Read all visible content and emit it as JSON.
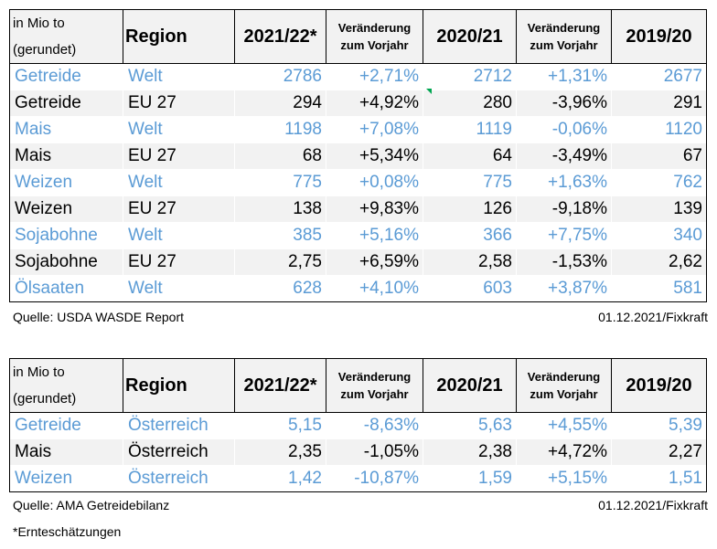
{
  "table1": {
    "header": {
      "unit_line1": "in Mio to",
      "unit_line2": "(gerundet)",
      "region": "Region",
      "y1": "2021/22*",
      "chg1_line1": "Veränderung",
      "chg1_line2": "zum Vorjahr",
      "y2": "2020/21",
      "chg2_line1": "Veränderung",
      "chg2_line2": "zum Vorjahr",
      "y3": "2019/20"
    },
    "rows": [
      {
        "name": "Getreide",
        "region": "Welt",
        "v1": "2786",
        "c1": "+2,71%",
        "v2": "2712",
        "c2": "+1,31%",
        "v3": "2677"
      },
      {
        "name": "Getreide",
        "region": "EU 27",
        "v1": "294",
        "c1": "+4,92%",
        "v2": "280",
        "c2": "-3,96%",
        "v3": "291"
      },
      {
        "name": "Mais",
        "region": "Welt",
        "v1": "1198",
        "c1": "+7,08%",
        "v2": "1119",
        "c2": "-0,06%",
        "v3": "1120"
      },
      {
        "name": "Mais",
        "region": "EU 27",
        "v1": "68",
        "c1": "+5,34%",
        "v2": "64",
        "c2": "-3,49%",
        "v3": "67"
      },
      {
        "name": "Weizen",
        "region": "Welt",
        "v1": "775",
        "c1": "+0,08%",
        "v2": "775",
        "c2": "+1,63%",
        "v3": "762"
      },
      {
        "name": "Weizen",
        "region": "EU 27",
        "v1": "138",
        "c1": "+9,83%",
        "v2": "126",
        "c2": "-9,18%",
        "v3": "139"
      },
      {
        "name": "Sojabohne",
        "region": "Welt",
        "v1": "385",
        "c1": "+5,16%",
        "v2": "366",
        "c2": "+7,75%",
        "v3": "340"
      },
      {
        "name": "Sojabohne",
        "region": "EU 27",
        "v1": "2,75",
        "c1": "+6,59%",
        "v2": "2,58",
        "c2": "-1,53%",
        "v3": "2,62"
      },
      {
        "name": "Ölsaaten",
        "region": "Welt",
        "v1": "628",
        "c1": "+4,10%",
        "v2": "603",
        "c2": "+3,87%",
        "v3": "581"
      }
    ],
    "source": "Quelle: USDA WASDE Report",
    "date": "01.12.2021/Fixkraft"
  },
  "table2": {
    "header": {
      "unit_line1": "in Mio to",
      "unit_line2": "(gerundet)",
      "region": "Region",
      "y1": "2021/22*",
      "chg1_line1": "Veränderung",
      "chg1_line2": "zum Vorjahr",
      "y2": "2020/21",
      "chg2_line1": "Veränderung",
      "chg2_line2": "zum Vorjahr",
      "y3": "2019/20"
    },
    "rows": [
      {
        "name": "Getreide",
        "region": "Österreich",
        "v1": "5,15",
        "c1": "-8,63%",
        "v2": "5,63",
        "c2": "+4,55%",
        "v3": "5,39"
      },
      {
        "name": "Mais",
        "region": "Österreich",
        "v1": "2,35",
        "c1": "-1,05%",
        "v2": "2,38",
        "c2": "+4,72%",
        "v3": "2,27"
      },
      {
        "name": "Weizen",
        "region": "Österreich",
        "v1": "1,42",
        "c1": "-10,87%",
        "v2": "1,59",
        "c2": "+5,15%",
        "v3": "1,51"
      }
    ],
    "source": "Quelle: AMA Getreidebilanz",
    "date": "01.12.2021/Fixkraft"
  },
  "footnote": "*Ernteschätzungen",
  "colors": {
    "highlight_text": "#5b9bd5",
    "row_shade": "#f2f2f2",
    "marker": "#00a651"
  }
}
